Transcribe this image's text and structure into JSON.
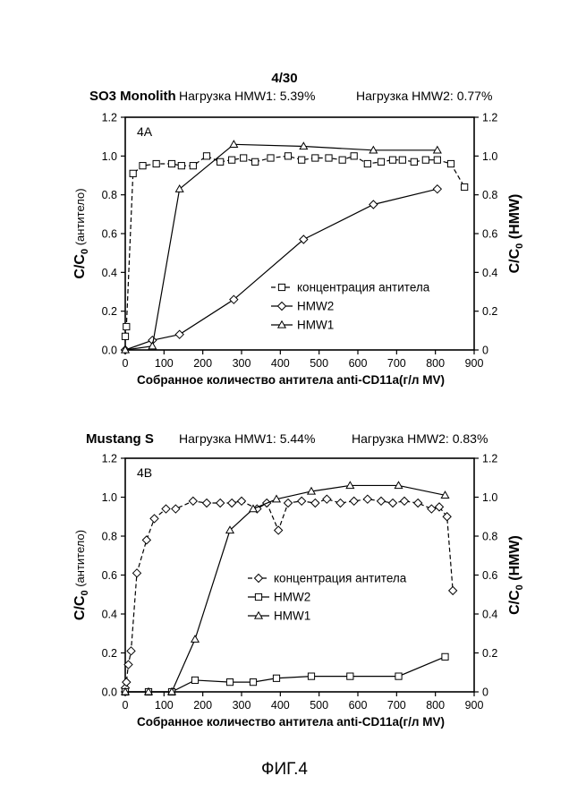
{
  "page_number": "4/30",
  "figure_caption": "ФИГ.4",
  "chart_data": [
    {
      "type": "line",
      "title": "SO3 Monolith",
      "subtitle_1": "Нагрузка HMW1: 5.39%",
      "subtitle_2": "Нагрузка HMW2: 0.77%",
      "panel_label": "4A",
      "xlabel": "Собранное количество антитела anti-CD11a(г/л MV)",
      "ylabel_left": {
        "main": "C/C",
        "sub": "0",
        "suffix": " (антитело)"
      },
      "ylabel_right": {
        "main": "C/C",
        "sub": "0",
        "suffix": " (HMW)"
      },
      "xlim": [
        0,
        900
      ],
      "ylim": [
        0,
        1.2
      ],
      "x_ticks": [
        "0",
        "100",
        "200",
        "300",
        "400",
        "500",
        "600",
        "700",
        "800",
        "900"
      ],
      "y_ticks": [
        "0.0",
        "0.2",
        "0.4",
        "0.6",
        "0.8",
        "1.0",
        "1.2"
      ],
      "y2_ticks": [
        "0",
        "0.2",
        "0.4",
        "0.6",
        "0.8",
        "1.0",
        "1.2"
      ],
      "legend_position": "lower-right",
      "series": [
        {
          "name": "концентрация антитела",
          "marker": "square",
          "dash": true,
          "x": [
            0,
            3,
            20,
            45,
            80,
            120,
            145,
            175,
            210,
            245,
            275,
            305,
            335,
            375,
            420,
            455,
            490,
            525,
            560,
            590,
            625,
            660,
            690,
            715,
            745,
            775,
            805,
            840,
            875
          ],
          "y": [
            0.07,
            0.12,
            0.91,
            0.95,
            0.96,
            0.96,
            0.95,
            0.95,
            1.0,
            0.97,
            0.98,
            0.99,
            0.97,
            0.99,
            1.0,
            0.98,
            0.99,
            0.99,
            0.98,
            1.0,
            0.96,
            0.97,
            0.98,
            0.98,
            0.97,
            0.98,
            0.98,
            0.96,
            0.84
          ]
        },
        {
          "name": "HMW2",
          "marker": "diamond",
          "dash": false,
          "x": [
            0,
            70,
            140,
            280,
            460,
            640,
            805
          ],
          "y": [
            0.0,
            0.05,
            0.08,
            0.26,
            0.57,
            0.75,
            0.83
          ]
        },
        {
          "name": "HMW1",
          "marker": "triangle",
          "dash": false,
          "x": [
            0,
            70,
            140,
            280,
            460,
            640,
            805
          ],
          "y": [
            0.0,
            0.02,
            0.83,
            1.06,
            1.05,
            1.03,
            1.03
          ]
        }
      ]
    },
    {
      "type": "line",
      "title": "Mustang S",
      "subtitle_1": "Нагрузка HMW1: 5.44%",
      "subtitle_2": "Нагрузка HMW2: 0.83%",
      "panel_label": "4B",
      "xlabel": "Собранное количество антитела anti-CD11a(г/л MV)",
      "ylabel_left": {
        "main": "C/C",
        "sub": "0",
        "suffix": " (антитело)"
      },
      "ylabel_right": {
        "main": "C/C",
        "sub": "0",
        "suffix": " (HMW)"
      },
      "xlim": [
        0,
        900
      ],
      "ylim": [
        0,
        1.2
      ],
      "x_ticks": [
        "0",
        "100",
        "200",
        "300",
        "400",
        "500",
        "600",
        "700",
        "800",
        "900"
      ],
      "y_ticks": [
        "0.0",
        "0.2",
        "0.4",
        "0.6",
        "0.8",
        "1.0",
        "1.2"
      ],
      "y2_ticks": [
        "0",
        "0.2",
        "0.4",
        "0.6",
        "0.8",
        "1.0",
        "1.2"
      ],
      "legend_position": "center-right",
      "series": [
        {
          "name": "концентрация антитела",
          "marker": "diamond",
          "dash": true,
          "x": [
            0,
            3,
            8,
            15,
            30,
            55,
            75,
            105,
            130,
            175,
            210,
            245,
            275,
            300,
            340,
            365,
            395,
            420,
            455,
            490,
            520,
            555,
            590,
            625,
            660,
            690,
            720,
            755,
            790,
            810,
            830,
            845
          ],
          "y": [
            0.02,
            0.05,
            0.14,
            0.21,
            0.61,
            0.78,
            0.89,
            0.94,
            0.94,
            0.98,
            0.97,
            0.97,
            0.97,
            0.98,
            0.94,
            0.97,
            0.83,
            0.97,
            0.98,
            0.97,
            0.99,
            0.97,
            0.98,
            0.99,
            0.98,
            0.97,
            0.98,
            0.97,
            0.94,
            0.95,
            0.9,
            0.52
          ]
        },
        {
          "name": "HMW2",
          "marker": "square",
          "dash": false,
          "x": [
            0,
            60,
            120,
            180,
            270,
            330,
            390,
            480,
            580,
            705,
            825
          ],
          "y": [
            0.0,
            0.0,
            0.0,
            0.06,
            0.05,
            0.05,
            0.07,
            0.08,
            0.08,
            0.08,
            0.18
          ]
        },
        {
          "name": "HMW1",
          "marker": "triangle",
          "dash": false,
          "x": [
            0,
            60,
            120,
            180,
            270,
            330,
            390,
            480,
            580,
            705,
            825
          ],
          "y": [
            0.0,
            0.0,
            0.0,
            0.27,
            0.83,
            0.94,
            0.99,
            1.03,
            1.06,
            1.06,
            1.01
          ]
        }
      ]
    }
  ]
}
